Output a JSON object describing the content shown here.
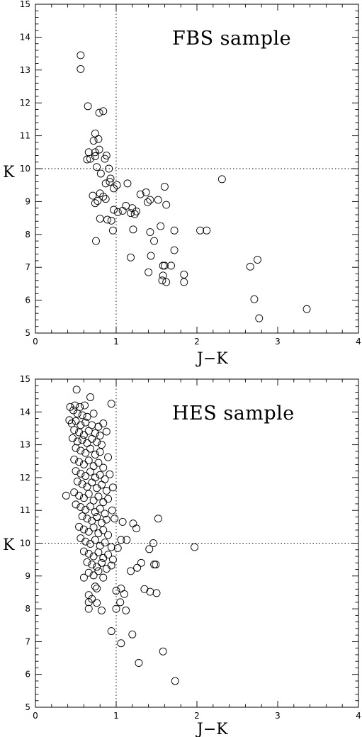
{
  "chart_data": [
    {
      "type": "scatter",
      "title": "FBS sample",
      "xlabel": "J−K",
      "ylabel": "K",
      "xlim": [
        0,
        4
      ],
      "ylim": [
        5,
        15
      ],
      "xticks": [
        "0",
        "1",
        "2",
        "3",
        "4"
      ],
      "yticks": [
        "5",
        "6",
        "7",
        "8",
        "9",
        "10",
        "11",
        "12",
        "13",
        "14",
        "15"
      ],
      "reference_lines": {
        "x": 1,
        "y": 10
      },
      "marker": "open-circle",
      "points": [
        [
          0.56,
          13.45
        ],
        [
          0.56,
          13.03
        ],
        [
          0.65,
          11.9
        ],
        [
          0.79,
          11.7
        ],
        [
          0.84,
          11.75
        ],
        [
          0.74,
          11.07
        ],
        [
          0.78,
          10.9
        ],
        [
          0.72,
          10.85
        ],
        [
          0.79,
          10.58
        ],
        [
          0.74,
          10.5
        ],
        [
          0.66,
          10.5
        ],
        [
          0.74,
          10.38
        ],
        [
          0.88,
          10.4
        ],
        [
          0.64,
          10.28
        ],
        [
          0.68,
          10.3
        ],
        [
          0.86,
          10.3
        ],
        [
          0.76,
          10.05
        ],
        [
          0.91,
          10.0
        ],
        [
          0.81,
          9.85
        ],
        [
          0.93,
          9.7
        ],
        [
          0.92,
          9.6
        ],
        [
          0.87,
          9.55
        ],
        [
          1.01,
          9.5
        ],
        [
          1.14,
          9.55
        ],
        [
          0.97,
          9.4
        ],
        [
          1.6,
          9.45
        ],
        [
          2.31,
          9.68
        ],
        [
          0.71,
          9.18
        ],
        [
          0.8,
          9.25
        ],
        [
          0.84,
          9.15
        ],
        [
          0.87,
          9.08
        ],
        [
          0.77,
          9.02
        ],
        [
          0.74,
          8.95
        ],
        [
          1.3,
          9.22
        ],
        [
          1.37,
          9.28
        ],
        [
          1.42,
          9.05
        ],
        [
          1.52,
          9.05
        ],
        [
          1.39,
          8.98
        ],
        [
          1.62,
          8.9
        ],
        [
          1.12,
          8.87
        ],
        [
          0.97,
          8.75
        ],
        [
          1.02,
          8.68
        ],
        [
          1.08,
          8.72
        ],
        [
          1.18,
          8.65
        ],
        [
          1.2,
          8.8
        ],
        [
          1.25,
          8.7
        ],
        [
          1.23,
          8.62
        ],
        [
          0.8,
          8.48
        ],
        [
          0.89,
          8.45
        ],
        [
          0.94,
          8.42
        ],
        [
          0.96,
          8.12
        ],
        [
          1.21,
          8.15
        ],
        [
          1.42,
          8.07
        ],
        [
          1.55,
          8.25
        ],
        [
          1.72,
          8.12
        ],
        [
          2.04,
          8.12
        ],
        [
          2.12,
          8.12
        ],
        [
          0.75,
          7.8
        ],
        [
          1.47,
          7.8
        ],
        [
          1.18,
          7.3
        ],
        [
          1.43,
          7.35
        ],
        [
          1.72,
          7.52
        ],
        [
          1.58,
          7.05
        ],
        [
          1.6,
          7.05
        ],
        [
          1.68,
          7.05
        ],
        [
          1.4,
          6.85
        ],
        [
          1.58,
          6.75
        ],
        [
          1.84,
          6.78
        ],
        [
          1.57,
          6.6
        ],
        [
          1.62,
          6.55
        ],
        [
          1.84,
          6.55
        ],
        [
          2.66,
          7.02
        ],
        [
          2.75,
          7.23
        ],
        [
          2.71,
          6.03
        ],
        [
          2.77,
          5.45
        ],
        [
          3.36,
          5.73
        ]
      ]
    },
    {
      "type": "scatter",
      "title": "HES sample",
      "xlabel": "J−K",
      "ylabel": "K",
      "xlim": [
        0,
        4
      ],
      "ylim": [
        5,
        15
      ],
      "xticks": [
        "0",
        "1",
        "2",
        "3",
        "4"
      ],
      "yticks": [
        "5",
        "6",
        "7",
        "8",
        "9",
        "10",
        "11",
        "12",
        "13",
        "14",
        "15"
      ],
      "reference_lines": {
        "x": 1,
        "y": 10
      },
      "marker": "open-circle",
      "points": [
        [
          0.51,
          14.68
        ],
        [
          0.43,
          14.15
        ],
        [
          0.49,
          14.2
        ],
        [
          0.55,
          14.15
        ],
        [
          0.61,
          14.2
        ],
        [
          0.68,
          14.45
        ],
        [
          0.94,
          14.25
        ],
        [
          0.47,
          14.05
        ],
        [
          0.52,
          13.95
        ],
        [
          0.58,
          13.9
        ],
        [
          0.64,
          13.85
        ],
        [
          0.72,
          13.95
        ],
        [
          0.42,
          13.75
        ],
        [
          0.45,
          13.65
        ],
        [
          0.5,
          13.72
        ],
        [
          0.56,
          13.6
        ],
        [
          0.62,
          13.68
        ],
        [
          0.7,
          13.6
        ],
        [
          0.78,
          13.55
        ],
        [
          0.84,
          13.65
        ],
        [
          0.48,
          13.45
        ],
        [
          0.54,
          13.38
        ],
        [
          0.6,
          13.3
        ],
        [
          0.66,
          13.42
        ],
        [
          0.74,
          13.35
        ],
        [
          0.8,
          13.28
        ],
        [
          0.88,
          13.4
        ],
        [
          0.46,
          13.2
        ],
        [
          0.52,
          13.1
        ],
        [
          0.58,
          13.15
        ],
        [
          0.64,
          13.05
        ],
        [
          0.7,
          13.18
        ],
        [
          0.76,
          13.08
        ],
        [
          0.82,
          13.0
        ],
        [
          0.5,
          12.9
        ],
        [
          0.56,
          12.82
        ],
        [
          0.62,
          12.75
        ],
        [
          0.68,
          12.88
        ],
        [
          0.74,
          12.7
        ],
        [
          0.8,
          12.78
        ],
        [
          0.9,
          12.62
        ],
        [
          0.48,
          12.55
        ],
        [
          0.54,
          12.48
        ],
        [
          0.6,
          12.4
        ],
        [
          0.66,
          12.52
        ],
        [
          0.72,
          12.35
        ],
        [
          0.78,
          12.45
        ],
        [
          0.84,
          12.3
        ],
        [
          0.5,
          12.2
        ],
        [
          0.56,
          12.12
        ],
        [
          0.62,
          12.05
        ],
        [
          0.68,
          12.18
        ],
        [
          0.74,
          12.0
        ],
        [
          0.8,
          12.08
        ],
        [
          0.86,
          11.95
        ],
        [
          0.92,
          12.1
        ],
        [
          0.52,
          11.88
        ],
        [
          0.58,
          11.8
        ],
        [
          0.64,
          11.72
        ],
        [
          0.7,
          11.85
        ],
        [
          0.76,
          11.68
        ],
        [
          0.82,
          11.78
        ],
        [
          0.88,
          11.6
        ],
        [
          0.96,
          11.7
        ],
        [
          0.48,
          11.55
        ],
        [
          0.54,
          11.45
        ],
        [
          0.6,
          11.38
        ],
        [
          0.66,
          11.5
        ],
        [
          0.72,
          11.3
        ],
        [
          0.78,
          11.42
        ],
        [
          0.84,
          11.25
        ],
        [
          0.9,
          11.35
        ],
        [
          0.38,
          11.45
        ],
        [
          0.5,
          11.18
        ],
        [
          0.56,
          11.1
        ],
        [
          0.62,
          11.02
        ],
        [
          0.68,
          11.12
        ],
        [
          0.74,
          10.95
        ],
        [
          0.8,
          11.05
        ],
        [
          0.86,
          10.9
        ],
        [
          0.95,
          11.0
        ],
        [
          0.58,
          10.82
        ],
        [
          0.64,
          10.75
        ],
        [
          0.7,
          10.68
        ],
        [
          0.76,
          10.8
        ],
        [
          0.82,
          10.62
        ],
        [
          0.88,
          10.72
        ],
        [
          0.98,
          10.75
        ],
        [
          1.08,
          10.65
        ],
        [
          1.21,
          10.6
        ],
        [
          1.25,
          10.45
        ],
        [
          1.52,
          10.75
        ],
        [
          0.54,
          10.5
        ],
        [
          0.6,
          10.42
        ],
        [
          0.66,
          10.35
        ],
        [
          0.72,
          10.48
        ],
        [
          0.78,
          10.3
        ],
        [
          0.84,
          10.4
        ],
        [
          0.9,
          10.25
        ],
        [
          1.06,
          10.1
        ],
        [
          1.13,
          10.1
        ],
        [
          0.56,
          10.15
        ],
        [
          0.62,
          10.05
        ],
        [
          0.68,
          9.98
        ],
        [
          0.74,
          10.1
        ],
        [
          0.8,
          9.92
        ],
        [
          0.86,
          10.02
        ],
        [
          0.94,
          9.88
        ],
        [
          1.02,
          9.85
        ],
        [
          1.46,
          10.0
        ],
        [
          1.41,
          9.82
        ],
        [
          1.97,
          9.88
        ],
        [
          0.6,
          9.75
        ],
        [
          0.66,
          9.68
        ],
        [
          0.72,
          9.6
        ],
        [
          0.78,
          9.72
        ],
        [
          0.84,
          9.55
        ],
        [
          0.9,
          9.65
        ],
        [
          0.96,
          9.5
        ],
        [
          1.31,
          9.4
        ],
        [
          1.26,
          9.25
        ],
        [
          1.47,
          9.35
        ],
        [
          1.49,
          9.35
        ],
        [
          0.64,
          9.42
        ],
        [
          0.7,
          9.35
        ],
        [
          0.76,
          9.28
        ],
        [
          0.82,
          9.4
        ],
        [
          0.88,
          9.22
        ],
        [
          0.94,
          9.32
        ],
        [
          1.18,
          9.15
        ],
        [
          0.66,
          9.1
        ],
        [
          0.72,
          9.02
        ],
        [
          0.78,
          9.15
        ],
        [
          0.84,
          8.95
        ],
        [
          0.6,
          8.95
        ],
        [
          0.74,
          8.68
        ],
        [
          0.76,
          8.62
        ],
        [
          1.0,
          8.55
        ],
        [
          1.06,
          8.62
        ],
        [
          1.1,
          8.45
        ],
        [
          1.35,
          8.6
        ],
        [
          1.42,
          8.52
        ],
        [
          1.5,
          8.48
        ],
        [
          0.66,
          8.42
        ],
        [
          0.7,
          8.3
        ],
        [
          0.76,
          8.18
        ],
        [
          0.66,
          8.2
        ],
        [
          0.66,
          8.0
        ],
        [
          0.82,
          7.95
        ],
        [
          1.05,
          8.2
        ],
        [
          1.0,
          8.0
        ],
        [
          1.12,
          7.95
        ],
        [
          0.94,
          7.32
        ],
        [
          1.2,
          7.22
        ],
        [
          1.06,
          6.95
        ],
        [
          1.28,
          6.35
        ],
        [
          1.58,
          6.7
        ],
        [
          1.73,
          5.8
        ]
      ]
    }
  ]
}
